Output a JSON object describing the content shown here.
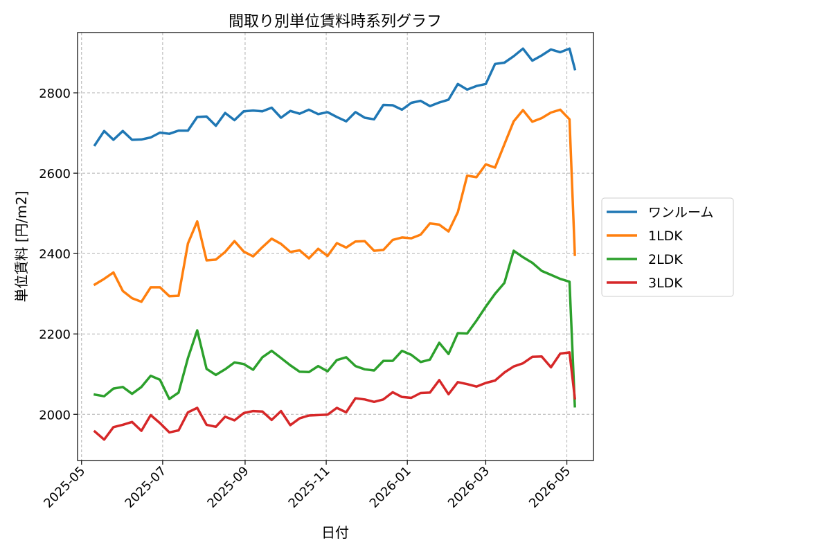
{
  "chart_data": {
    "type": "line",
    "title": "間取り別単位賃料時系列グラフ",
    "xlabel": "日付",
    "ylabel": "単位賃料 [円/m2]",
    "ylim": [
      1885,
      2950
    ],
    "xlim": [
      "2025-04-28",
      "2026-05-21"
    ],
    "grid": true,
    "legend_position": "center-right",
    "y_ticks": [
      2000,
      2200,
      2400,
      2600,
      2800
    ],
    "x_ticks": [
      "2025-05-01",
      "2025-07-01",
      "2025-09-01",
      "2025-11-01",
      "2026-01-01",
      "2026-03-01",
      "2026-05-01"
    ],
    "x_tick_labels": [
      "2025-05",
      "2025-07",
      "2025-09",
      "2025-11",
      "2026-01",
      "2026-03",
      "2026-05"
    ],
    "x": [
      "2025-05-11",
      "2025-05-18",
      "2025-05-25",
      "2025-06-01",
      "2025-06-08",
      "2025-06-15",
      "2025-06-22",
      "2025-06-29",
      "2025-07-06",
      "2025-07-13",
      "2025-07-20",
      "2025-07-27",
      "2025-08-03",
      "2025-08-10",
      "2025-08-17",
      "2025-08-24",
      "2025-08-31",
      "2025-09-07",
      "2025-09-14",
      "2025-09-21",
      "2025-09-28",
      "2025-10-05",
      "2025-10-12",
      "2025-10-19",
      "2025-10-26",
      "2025-11-02",
      "2025-11-09",
      "2025-11-16",
      "2025-11-23",
      "2025-11-30",
      "2025-12-07",
      "2025-12-14",
      "2025-12-21",
      "2025-12-28",
      "2026-01-04",
      "2026-01-11",
      "2026-01-18",
      "2026-01-25",
      "2026-02-01",
      "2026-02-08",
      "2026-02-15",
      "2026-02-22",
      "2026-03-01",
      "2026-03-08",
      "2026-03-15",
      "2026-03-22",
      "2026-03-29",
      "2026-04-05",
      "2026-04-12",
      "2026-04-19",
      "2026-04-26",
      "2026-05-03",
      "2026-05-07"
    ],
    "series": [
      {
        "name": "ワンルーム",
        "color": "#1f77b4",
        "values": [
          2670,
          2705,
          2683,
          2705,
          2683,
          2684,
          2689,
          2701,
          2698,
          2706,
          2706,
          2740,
          2741,
          2718,
          2750,
          2732,
          2754,
          2756,
          2754,
          2763,
          2738,
          2755,
          2748,
          2758,
          2747,
          2752,
          2740,
          2729,
          2752,
          2738,
          2734,
          2770,
          2769,
          2758,
          2775,
          2780,
          2767,
          2776,
          2783,
          2822,
          2808,
          2817,
          2822,
          2872,
          2875,
          2891,
          2910,
          2880,
          2893,
          2908,
          2901,
          2910,
          2859
        ]
      },
      {
        "name": "1LDK",
        "color": "#ff7f0e",
        "values": [
          2323,
          2337,
          2353,
          2307,
          2289,
          2280,
          2316,
          2316,
          2294,
          2295,
          2425,
          2480,
          2383,
          2385,
          2404,
          2431,
          2405,
          2393,
          2416,
          2437,
          2424,
          2404,
          2408,
          2388,
          2412,
          2394,
          2426,
          2415,
          2430,
          2431,
          2407,
          2409,
          2434,
          2440,
          2438,
          2447,
          2475,
          2472,
          2455,
          2503,
          2594,
          2590,
          2622,
          2614,
          2672,
          2729,
          2757,
          2728,
          2737,
          2751,
          2758,
          2734,
          2397
        ]
      },
      {
        "name": "2LDK",
        "color": "#2ca02c",
        "values": [
          2049,
          2045,
          2064,
          2068,
          2051,
          2068,
          2096,
          2086,
          2038,
          2054,
          2140,
          2209,
          2113,
          2098,
          2112,
          2129,
          2125,
          2111,
          2142,
          2158,
          2140,
          2122,
          2106,
          2105,
          2120,
          2107,
          2135,
          2142,
          2120,
          2112,
          2109,
          2133,
          2133,
          2158,
          2148,
          2130,
          2136,
          2178,
          2150,
          2202,
          2201,
          2233,
          2268,
          2300,
          2327,
          2407,
          2391,
          2377,
          2357,
          2347,
          2337,
          2330,
          2020
        ]
      },
      {
        "name": "3LDK",
        "color": "#d62728",
        "values": [
          1957,
          1937,
          1968,
          1974,
          1981,
          1959,
          1998,
          1978,
          1955,
          1960,
          2005,
          2016,
          1974,
          1969,
          1994,
          1985,
          2003,
          2008,
          2007,
          1986,
          2008,
          1973,
          1990,
          1997,
          1998,
          1999,
          2016,
          2005,
          2040,
          2037,
          2031,
          2037,
          2055,
          2043,
          2041,
          2053,
          2054,
          2085,
          2050,
          2080,
          2075,
          2069,
          2078,
          2084,
          2104,
          2119,
          2127,
          2143,
          2144,
          2117,
          2151,
          2154,
          2040
        ]
      }
    ]
  }
}
